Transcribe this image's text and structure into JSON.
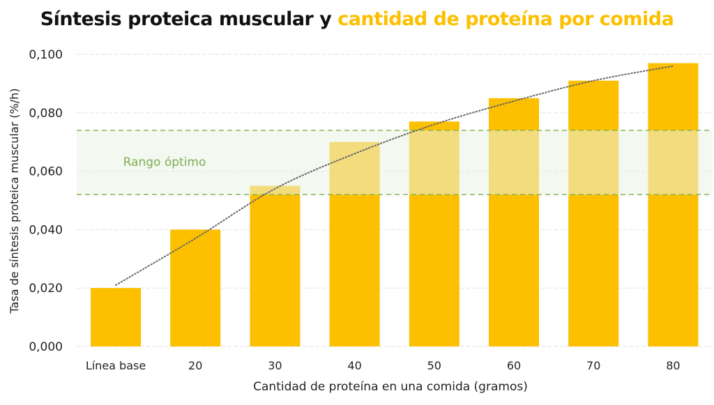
{
  "title": {
    "part1": "Síntesis proteica muscular y",
    "part2": "cantidad de proteína por comida"
  },
  "colors": {
    "bar": "#fcc000",
    "title_accent": "#fcc000",
    "band_line": "#86b356",
    "band_fill": "#e9f3e3",
    "band_label": "#7fac55",
    "trend": "#666666"
  },
  "chart_data": {
    "type": "bar",
    "xlabel": "Cantidad de proteína en una comida (gramos)",
    "ylabel": "Tasa de síntesis proteica muscular (%/h)",
    "categories": [
      "Línea base",
      "20",
      "30",
      "40",
      "50",
      "60",
      "70",
      "80"
    ],
    "values": [
      0.02,
      0.04,
      0.055,
      0.07,
      0.077,
      0.085,
      0.091,
      0.097
    ],
    "ylim": [
      0,
      0.1
    ],
    "yticks": [
      "0,000",
      "0,020",
      "0,040",
      "0,060",
      "0,080",
      "0,100"
    ],
    "grid": true,
    "trendline": {
      "style": "dotted",
      "values": [
        0.021,
        0.037,
        0.054,
        0.066,
        0.076,
        0.084,
        0.091,
        0.096
      ]
    },
    "band": {
      "label": "Rango óptimo",
      "from": 0.052,
      "to": 0.074
    }
  }
}
